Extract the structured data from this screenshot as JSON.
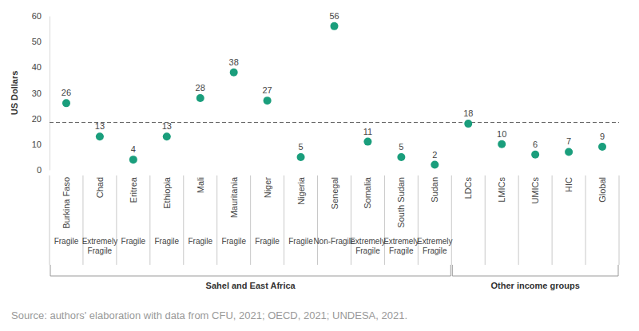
{
  "chart_data": {
    "type": "dot",
    "y_label": "US Dollars",
    "categories": [
      "Burkina Faso",
      "Chad",
      "Eritrea",
      "Ethiopia",
      "Mali",
      "Mauritania",
      "Niger",
      "Nigeria",
      "Senegal",
      "Somalia",
      "South Sudan",
      "Sudan",
      "LDCs",
      "LMICs",
      "UMICs",
      "HIC",
      "Global"
    ],
    "values": [
      26,
      13,
      4,
      13,
      28,
      38,
      27,
      5,
      56,
      11,
      5,
      2,
      18,
      10,
      6,
      7,
      9
    ],
    "fragility": [
      "Fragile",
      "Extremely Fragile",
      "Fragile",
      "Fragile",
      "Fragile",
      "Fragile",
      "Fragile",
      "Fragile",
      "Non-Fragile",
      "Extremely Fragile",
      "Extremely Fragile",
      "Extremely Fragile",
      null,
      null,
      null,
      null,
      null
    ],
    "group": [
      "Sahel and East Africa",
      "Sahel and East Africa",
      "Sahel and East Africa",
      "Sahel and East Africa",
      "Sahel and East Africa",
      "Sahel and East Africa",
      "Sahel and East Africa",
      "Sahel and East Africa",
      "Sahel and East Africa",
      "Sahel and East Africa",
      "Sahel and East Africa",
      "Sahel and East Africa",
      "Other income groups",
      "Other income groups",
      "Other income groups",
      "Other income groups",
      "Other income groups"
    ],
    "reference_line": 18.5,
    "line_style": "dashed",
    "color": "#1a9e7c",
    "marker": "circle",
    "data_labels": true,
    "ylim": [
      0,
      60
    ],
    "yticks": [
      0,
      10,
      20,
      30,
      40,
      50,
      60
    ],
    "source": "Source: authors' elaboration with data from CFU, 2021; OECD, 2021; UNDESA, 2021."
  }
}
